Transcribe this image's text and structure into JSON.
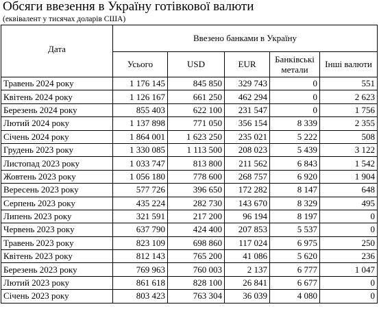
{
  "title": "Обсяги ввезення в Україну готівкової валюти",
  "subtitle": "(еквівалент у тисячах доларів США)",
  "headers": {
    "date": "Дата",
    "group": "Ввезено банками в Україну",
    "total": "Усього",
    "usd": "USD",
    "eur": "EUR",
    "metals": "Банківські метали",
    "other": "Інші валюти"
  },
  "rows": [
    {
      "date": "Травень 2024 року",
      "total": "1 176 145",
      "usd": "845 850",
      "eur": "329 743",
      "metals": "0",
      "other": "551"
    },
    {
      "date": "Квітень 2024 року",
      "total": "1 126 167",
      "usd": "661 250",
      "eur": "462 294",
      "metals": "0",
      "other": "2 623"
    },
    {
      "date": "Березень 2024 року",
      "total": "855 403",
      "usd": "622 100",
      "eur": "231 547",
      "metals": "0",
      "other": "1 756"
    },
    {
      "date": "Лютий 2024 року",
      "total": "1 137 898",
      "usd": "771 050",
      "eur": "356 154",
      "metals": "8 339",
      "other": "2 355"
    },
    {
      "date": "Січень 2024 року",
      "total": "1 864 001",
      "usd": "1 623 250",
      "eur": "235 021",
      "metals": "5 222",
      "other": "508"
    },
    {
      "date": "Грудень 2023 року",
      "total": "1 330 085",
      "usd": "1 113 500",
      "eur": "208 023",
      "metals": "5 439",
      "other": "3 122"
    },
    {
      "date": "Листопад 2023 року",
      "total": "1 033 747",
      "usd": "813 800",
      "eur": "211 562",
      "metals": "6 843",
      "other": "1 542"
    },
    {
      "date": "Жовтень 2023 року",
      "total": "1 056 180",
      "usd": "778 600",
      "eur": "268 757",
      "metals": "6 920",
      "other": "1 904"
    },
    {
      "date": "Вересень 2023 року",
      "total": "577 726",
      "usd": "396 650",
      "eur": "172 282",
      "metals": "8 147",
      "other": "648"
    },
    {
      "date": "Серпень 2023 року",
      "total": "435 224",
      "usd": "282 730",
      "eur": "143 670",
      "metals": "8 329",
      "other": "495"
    },
    {
      "date": "Липень 2023 року",
      "total": "321 591",
      "usd": "217 200",
      "eur": "96 194",
      "metals": "8 197",
      "other": "0"
    },
    {
      "date": "Червень 2023 року",
      "total": "637 790",
      "usd": "424 400",
      "eur": "207 853",
      "metals": "5 537",
      "other": "0"
    },
    {
      "date": "Травень 2023 року",
      "total": "823 109",
      "usd": "698 860",
      "eur": "117 024",
      "metals": "6 975",
      "other": "250"
    },
    {
      "date": "Квітень 2023 року",
      "total": "812 143",
      "usd": "765 200",
      "eur": "41 086",
      "metals": "5 620",
      "other": "236"
    },
    {
      "date": "Березень 2023 року",
      "total": "769 963",
      "usd": "760 003",
      "eur": "2 137",
      "metals": "6 777",
      "other": "1 047"
    },
    {
      "date": "Лютий 2023 року",
      "total": "861 618",
      "usd": "828 100",
      "eur": "26 841",
      "metals": "6 677",
      "other": "0"
    },
    {
      "date": "Січень 2023 року",
      "total": "803 423",
      "usd": "763 304",
      "eur": "36 039",
      "metals": "4 080",
      "other": "0"
    }
  ]
}
